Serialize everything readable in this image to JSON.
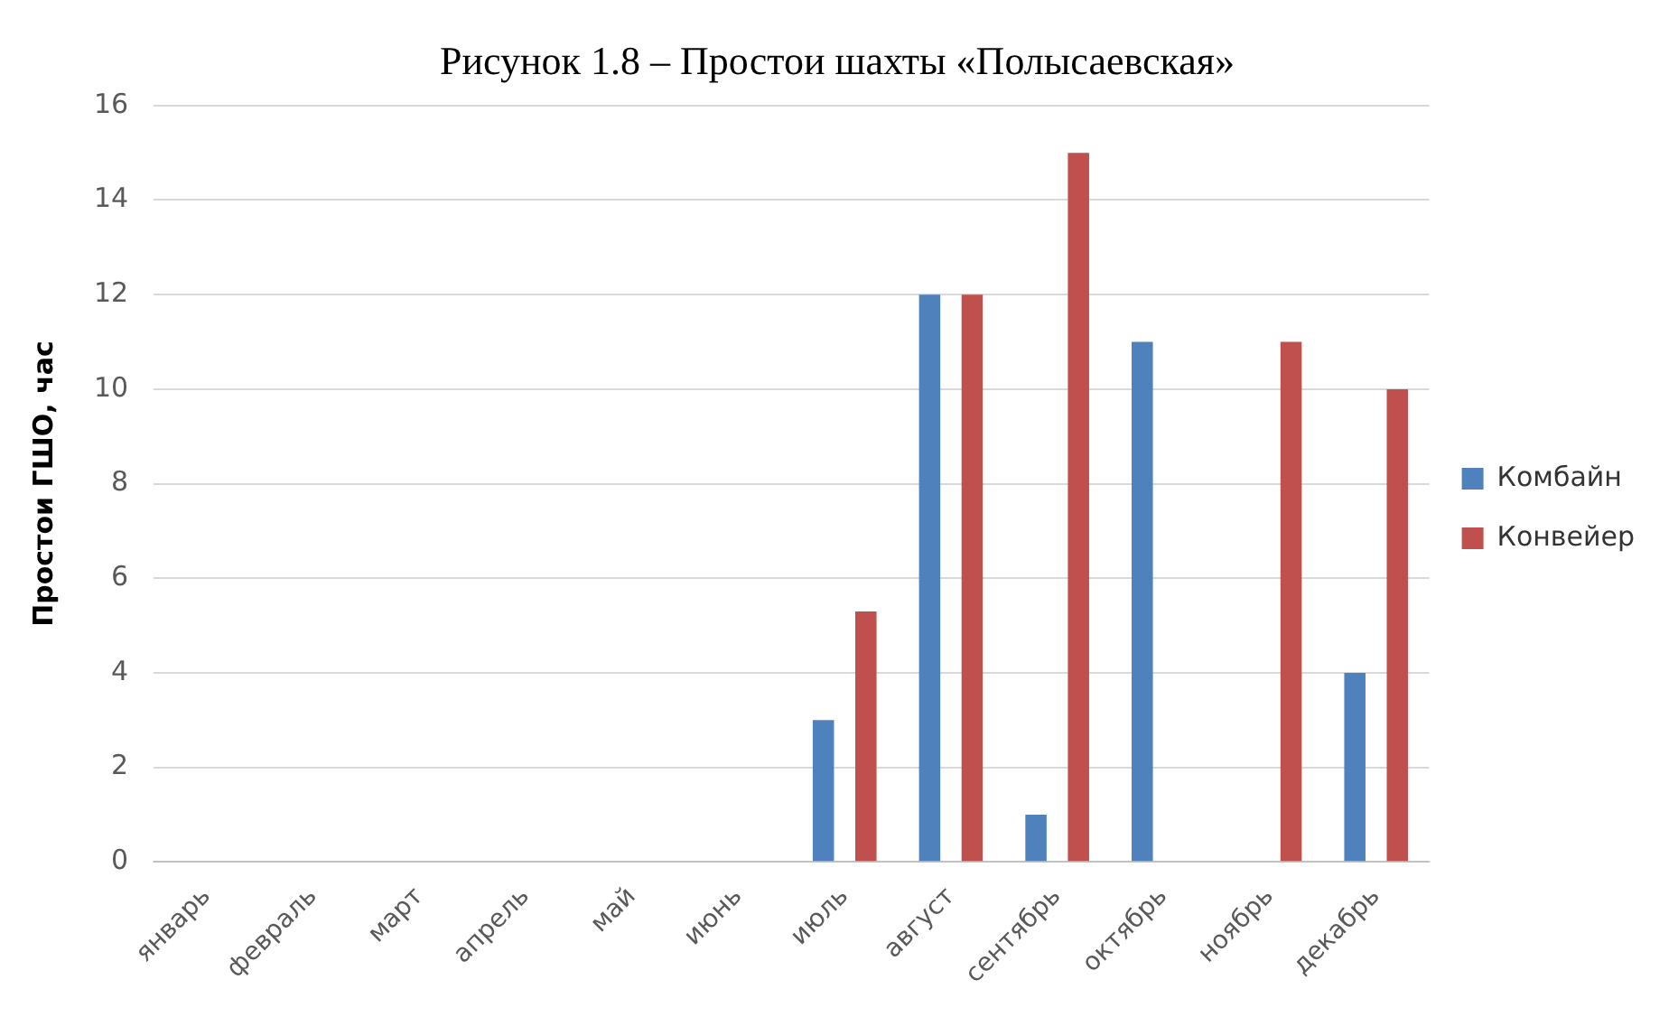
{
  "chart_data": {
    "type": "bar",
    "title": "Рисунок 1.8 – Простои шахты «Полысаевская»",
    "ylabel": "Простои ГШО, час",
    "categories": [
      "январь",
      "февраль",
      "март",
      "апрель",
      "май",
      "июнь",
      "июль",
      "август",
      "сентябрь",
      "октябрь",
      "ноябрь",
      "декабрь"
    ],
    "series": [
      {
        "name": "Комбайн",
        "color": "#4f81bd",
        "values": [
          0,
          0,
          0,
          0,
          0,
          0,
          3,
          12,
          1,
          11,
          0,
          4
        ]
      },
      {
        "name": "Конвейер",
        "color": "#c0504d",
        "values": [
          0,
          0,
          0,
          0,
          0,
          0,
          5.3,
          12,
          15,
          0,
          11,
          10
        ]
      }
    ],
    "ylim": [
      0,
      16
    ],
    "yticks": [
      0,
      2,
      4,
      6,
      8,
      10,
      12,
      14,
      16
    ],
    "grid": "y",
    "legend": "right"
  }
}
